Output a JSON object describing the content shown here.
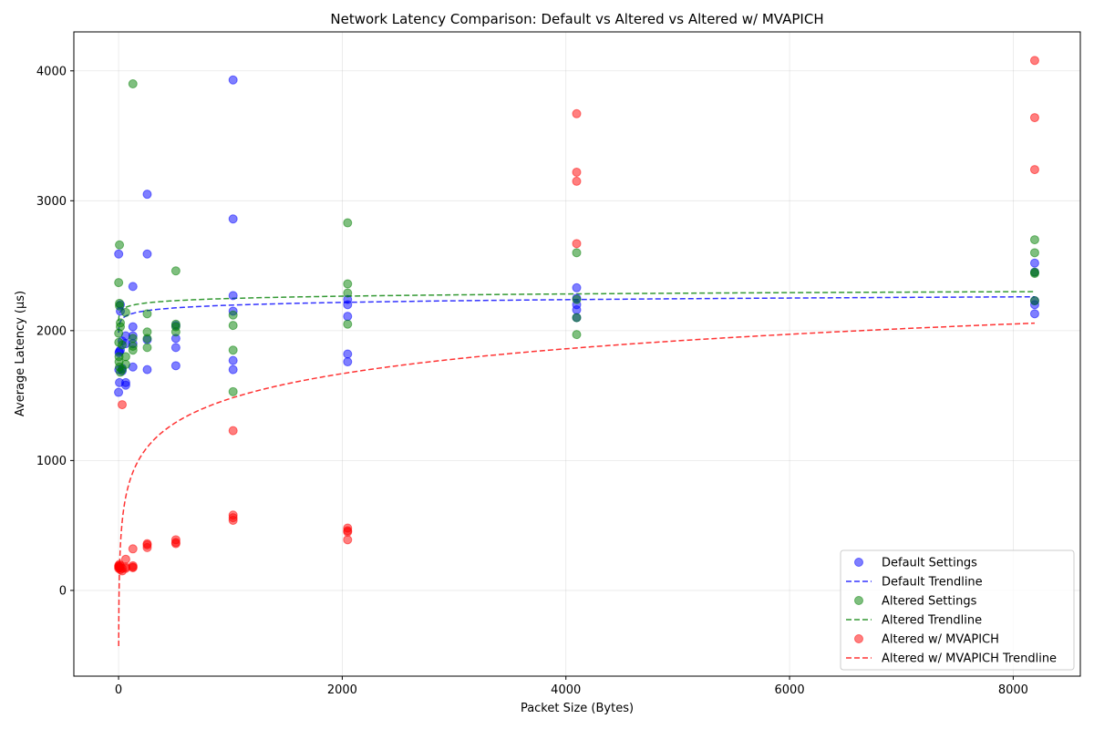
{
  "chart_data": {
    "type": "scatter",
    "title": "Network Latency Comparison: Default vs Altered vs Altered w/ MVAPICH",
    "xlabel": "Packet Size (Bytes)",
    "ylabel": "Average Latency (µs)",
    "xlim": [
      -400,
      8600
    ],
    "ylim": [
      -660,
      4300
    ],
    "xticks": [
      0,
      2000,
      4000,
      6000,
      8000
    ],
    "xtick_labels": [
      "0",
      "2000",
      "4000",
      "6000",
      "8000"
    ],
    "yticks": [
      0,
      1000,
      2000,
      3000,
      4000
    ],
    "ytick_labels": [
      "0",
      "1000",
      "2000",
      "3000",
      "4000"
    ],
    "grid": true,
    "legend_position": "lower-right",
    "series": [
      {
        "name": "Default Settings",
        "color": "#0000ff",
        "points": [
          [
            0,
            1525
          ],
          [
            1,
            2590
          ],
          [
            2,
            1700
          ],
          [
            4,
            1830
          ],
          [
            8,
            1600
          ],
          [
            8,
            1840
          ],
          [
            16,
            2150
          ],
          [
            16,
            2200
          ],
          [
            16,
            1850
          ],
          [
            32,
            1690
          ],
          [
            32,
            1710
          ],
          [
            32,
            1920
          ],
          [
            64,
            1580
          ],
          [
            64,
            1600
          ],
          [
            64,
            1960
          ],
          [
            64,
            1900
          ],
          [
            128,
            2340
          ],
          [
            128,
            2030
          ],
          [
            128,
            1960
          ],
          [
            128,
            1720
          ],
          [
            128,
            1900
          ],
          [
            256,
            3050
          ],
          [
            256,
            2590
          ],
          [
            256,
            1700
          ],
          [
            256,
            1930
          ],
          [
            512,
            2040
          ],
          [
            512,
            1940
          ],
          [
            512,
            1870
          ],
          [
            512,
            1730
          ],
          [
            1024,
            3930
          ],
          [
            1024,
            2860
          ],
          [
            1024,
            2270
          ],
          [
            1024,
            2150
          ],
          [
            1024,
            1770
          ],
          [
            1024,
            1700
          ],
          [
            2048,
            2240
          ],
          [
            2048,
            2200
          ],
          [
            2048,
            2110
          ],
          [
            2048,
            1820
          ],
          [
            2048,
            1760
          ],
          [
            4096,
            2330
          ],
          [
            4096,
            2250
          ],
          [
            4096,
            2200
          ],
          [
            4096,
            2160
          ],
          [
            4096,
            2100
          ],
          [
            8192,
            2520
          ],
          [
            8192,
            2450
          ],
          [
            8192,
            2230
          ],
          [
            8192,
            2200
          ],
          [
            8192,
            2130
          ]
        ]
      },
      {
        "name": "Altered Settings",
        "color": "#008000",
        "points": [
          [
            1,
            2370
          ],
          [
            1,
            1980
          ],
          [
            2,
            1910
          ],
          [
            4,
            1800
          ],
          [
            4,
            1760
          ],
          [
            8,
            2660
          ],
          [
            8,
            2210
          ],
          [
            8,
            2190
          ],
          [
            8,
            1720
          ],
          [
            16,
            2060
          ],
          [
            16,
            2030
          ],
          [
            16,
            1680
          ],
          [
            32,
            1700
          ],
          [
            32,
            1890
          ],
          [
            64,
            2140
          ],
          [
            64,
            1800
          ],
          [
            64,
            1740
          ],
          [
            128,
            3900
          ],
          [
            128,
            1940
          ],
          [
            128,
            1880
          ],
          [
            128,
            1850
          ],
          [
            256,
            2130
          ],
          [
            256,
            1990
          ],
          [
            256,
            1940
          ],
          [
            256,
            1870
          ],
          [
            512,
            2460
          ],
          [
            512,
            2050
          ],
          [
            512,
            2030
          ],
          [
            512,
            1990
          ],
          [
            1024,
            2120
          ],
          [
            1024,
            2040
          ],
          [
            1024,
            1850
          ],
          [
            1024,
            1530
          ],
          [
            2048,
            2830
          ],
          [
            2048,
            2360
          ],
          [
            2048,
            2290
          ],
          [
            2048,
            2050
          ],
          [
            4096,
            2600
          ],
          [
            4096,
            2240
          ],
          [
            4096,
            2100
          ],
          [
            4096,
            1970
          ],
          [
            8192,
            2700
          ],
          [
            8192,
            2600
          ],
          [
            8192,
            2450
          ],
          [
            8192,
            2440
          ],
          [
            8192,
            2230
          ]
        ]
      },
      {
        "name": "Altered w/ MVAPICH",
        "color": "#ff0000",
        "points": [
          [
            1,
            190
          ],
          [
            1,
            170
          ],
          [
            2,
            180
          ],
          [
            4,
            185
          ],
          [
            8,
            175
          ],
          [
            8,
            200
          ],
          [
            16,
            160
          ],
          [
            16,
            190
          ],
          [
            32,
            1430
          ],
          [
            32,
            170
          ],
          [
            32,
            150
          ],
          [
            64,
            240
          ],
          [
            64,
            180
          ],
          [
            64,
            170
          ],
          [
            128,
            320
          ],
          [
            128,
            190
          ],
          [
            128,
            180
          ],
          [
            128,
            175
          ],
          [
            256,
            360
          ],
          [
            256,
            350
          ],
          [
            256,
            330
          ],
          [
            512,
            390
          ],
          [
            512,
            370
          ],
          [
            512,
            360
          ],
          [
            1024,
            1230
          ],
          [
            1024,
            580
          ],
          [
            1024,
            560
          ],
          [
            1024,
            540
          ],
          [
            2048,
            480
          ],
          [
            2048,
            460
          ],
          [
            2048,
            450
          ],
          [
            2048,
            390
          ],
          [
            4096,
            3670
          ],
          [
            4096,
            3220
          ],
          [
            4096,
            3150
          ],
          [
            4096,
            2670
          ],
          [
            8192,
            4080
          ],
          [
            8192,
            3640
          ],
          [
            8192,
            3240
          ]
        ]
      }
    ],
    "trendlines": [
      {
        "name": "Default Trendline",
        "color": "#0000ff",
        "a": 1983.8,
        "b": 30.72
      },
      {
        "name": "Altered Trendline",
        "color": "#008000",
        "a": 2075.4,
        "b": 24.96
      },
      {
        "name": "Altered w/ MVAPICH Trendline",
        "color": "#ff0000",
        "a": -428.1,
        "b": 275.9
      }
    ],
    "trend_range": [
      1,
      8192
    ],
    "legend": [
      {
        "label": "Default Settings",
        "kind": "marker",
        "color": "#0000ff"
      },
      {
        "label": "Default Trendline",
        "kind": "line",
        "color": "#0000ff"
      },
      {
        "label": "Altered Settings",
        "kind": "marker",
        "color": "#008000"
      },
      {
        "label": "Altered Trendline",
        "kind": "line",
        "color": "#008000"
      },
      {
        "label": "Altered w/ MVAPICH",
        "kind": "marker",
        "color": "#ff0000"
      },
      {
        "label": "Altered w/ MVAPICH Trendline",
        "kind": "line",
        "color": "#ff0000"
      }
    ]
  }
}
